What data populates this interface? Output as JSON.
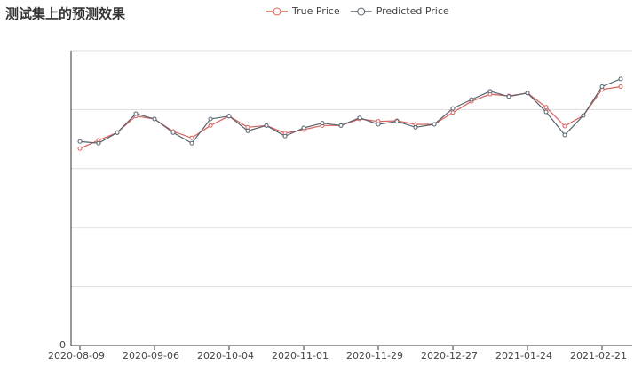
{
  "chart_data": {
    "type": "line",
    "title": "测试集上的预测效果",
    "categories": [
      "2020-08-09",
      null,
      null,
      null,
      "2020-09-06",
      null,
      null,
      null,
      "2020-10-04",
      null,
      null,
      null,
      "2020-11-01",
      null,
      null,
      null,
      "2020-11-29",
      null,
      null,
      null,
      "2020-12-27",
      null,
      null,
      null,
      "2021-01-24",
      null,
      null,
      null,
      "2021-02-21",
      null
    ],
    "series": [
      {
        "name": "True Price",
        "color": "#d9605b",
        "values": [
          3.34,
          3.48,
          3.61,
          3.89,
          3.84,
          3.63,
          3.52,
          3.73,
          3.89,
          3.7,
          3.73,
          3.6,
          3.66,
          3.73,
          3.73,
          3.84,
          3.8,
          3.81,
          3.75,
          3.75,
          3.95,
          4.14,
          4.26,
          4.23,
          4.28,
          4.04,
          3.72,
          3.9,
          4.34,
          4.39
        ]
      },
      {
        "name": "Predicted Price",
        "color": "#56636e",
        "values": [
          3.46,
          3.43,
          3.61,
          3.93,
          3.84,
          3.61,
          3.43,
          3.84,
          3.89,
          3.64,
          3.73,
          3.55,
          3.69,
          3.77,
          3.73,
          3.86,
          3.75,
          3.8,
          3.7,
          3.75,
          4.02,
          4.17,
          4.31,
          4.22,
          4.28,
          3.96,
          3.57,
          3.9,
          4.39,
          4.52
        ]
      }
    ],
    "ylim": [
      0,
      5
    ],
    "yticks": [
      0
    ],
    "ygrid": [
      1,
      2,
      3,
      4,
      5
    ],
    "legend": "top"
  }
}
